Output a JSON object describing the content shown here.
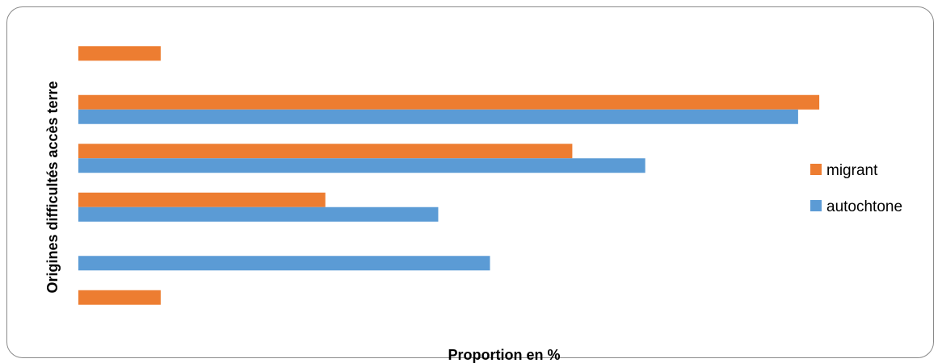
{
  "chart_data": {
    "type": "bar",
    "orientation": "horizontal",
    "title": "",
    "xlabel": "Proportion en %",
    "ylabel": "Origines difficultés accès terre",
    "categories": [
      "",
      "",
      "",
      "",
      "",
      ""
    ],
    "series": [
      {
        "name": "migrant",
        "color": "#ed7d31",
        "values": [
          3.5,
          0,
          10.5,
          21,
          31.5,
          3.5
        ]
      },
      {
        "name": "autochtone",
        "color": "#5b9bd5",
        "values": [
          0,
          17.5,
          15.3,
          24.1,
          30.6,
          0
        ]
      }
    ],
    "xlim": [
      0,
      35
    ],
    "grid": false,
    "legend_position": "right",
    "axis_ticks_shown": false
  }
}
